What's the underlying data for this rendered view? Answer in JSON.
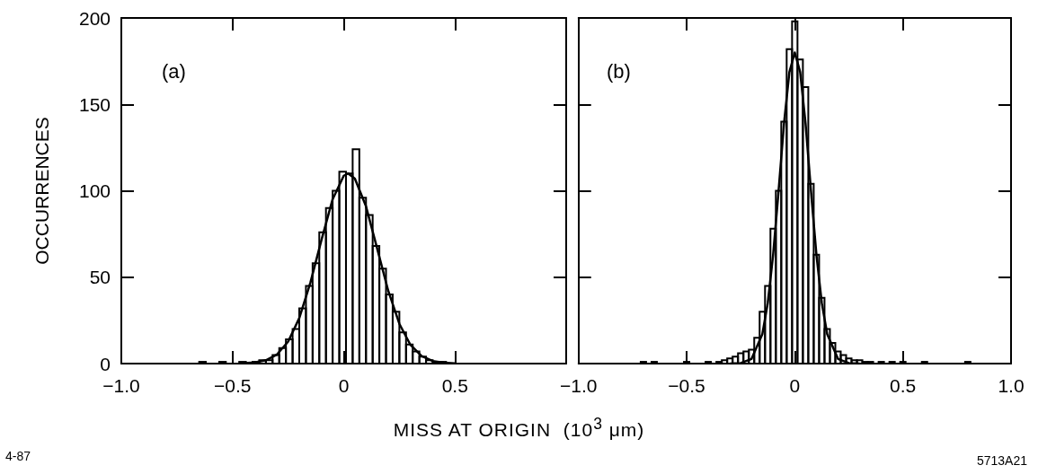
{
  "chart_data": [
    {
      "type": "histogram",
      "ylabel": "OCCURRENCES",
      "xlabel": "MISS AT ORIGIN  (10$^{3}$ μm)",
      "annotations": [
        "(a)",
        "4-87"
      ],
      "xlim": [
        -1,
        1
      ],
      "xticks": [
        {
          "value": -1,
          "label": "−1.0"
        },
        {
          "value": -0.5,
          "label": "−0.5"
        },
        0,
        {
          "value": 0.5,
          "label": "0.5"
        },
        {
          "value": 1,
          "label": null
        }
      ],
      "ylim": [
        0,
        200
      ],
      "yticks": [
        0,
        50,
        100,
        150,
        200
      ],
      "series": [
        {
          "color": "#000000",
          "bins": [
            -0.98,
            -0.95,
            -0.92,
            -0.89,
            -0.86,
            -0.83,
            -0.8,
            -0.77,
            -0.74,
            -0.71,
            -0.68,
            -0.65,
            -0.62,
            -0.59,
            -0.56,
            -0.53,
            -0.5,
            -0.47,
            -0.44,
            -0.41,
            -0.38,
            -0.35,
            -0.32,
            -0.29,
            -0.26,
            -0.23,
            -0.2,
            -0.17,
            -0.14,
            -0.11,
            -0.08,
            -0.05,
            -0.02,
            0.01,
            0.04,
            0.07,
            0.1,
            0.13,
            0.16,
            0.19,
            0.22,
            0.25,
            0.28,
            0.31,
            0.34,
            0.37,
            0.4,
            0.43,
            0.46,
            0.49,
            0.52,
            0.55,
            0.58,
            0.61,
            0.64,
            0.67,
            0.7,
            0.73,
            0.76,
            0.79,
            0.82,
            0.85,
            0.88,
            0.91,
            0.94,
            0.97,
            1.0
          ],
          "values": [
            0,
            0,
            0,
            0,
            0,
            0,
            0,
            0,
            0,
            0,
            0,
            1,
            0,
            0,
            1,
            0,
            0,
            1,
            0,
            1,
            2,
            2,
            5,
            9,
            14,
            20,
            32,
            45,
            58,
            76,
            90,
            100,
            111,
            110,
            124,
            96,
            86,
            68,
            55,
            40,
            30,
            18,
            11,
            7,
            4,
            2,
            1,
            1,
            0,
            0,
            0,
            0,
            0,
            0,
            0,
            0,
            0,
            0,
            0,
            0,
            0,
            0,
            0,
            0,
            0,
            0
          ]
        },
        {
          "type": "line",
          "color": "#000000",
          "x": [
            -0.45,
            -0.4,
            -0.35,
            -0.3,
            -0.25,
            -0.2,
            -0.15,
            -0.1,
            -0.05,
            0,
            0.02,
            0.05,
            0.1,
            0.15,
            0.2,
            0.25,
            0.3,
            0.35,
            0.4,
            0.45,
            0.5
          ],
          "values": [
            0.2,
            0.6,
            1.9,
            5.3,
            12.7,
            26.3,
            46.8,
            71.6,
            95.1,
            108.7,
            110,
            107,
            91,
            66.7,
            42.1,
            23,
            10.8,
            4.4,
            1.5,
            0.5,
            0.1
          ]
        }
      ]
    },
    {
      "type": "histogram",
      "annotations": [
        "(b)",
        "5713A21"
      ],
      "xlim": [
        -1,
        1
      ],
      "xticks": [
        {
          "value": -1,
          "label": "−1.0"
        },
        {
          "value": -0.5,
          "label": "−0.5"
        },
        0,
        {
          "value": 0.5,
          "label": "0.5"
        },
        {
          "value": 1,
          "label": "1.0"
        }
      ],
      "ylim": [
        0,
        200
      ],
      "yticks": [
        0,
        50,
        100,
        150,
        200
      ],
      "tick_labels": "x",
      "series": [
        {
          "color": "#000000",
          "bins": [
            -0.9875,
            -0.9625,
            -0.9375,
            -0.9125,
            -0.8875,
            -0.8625,
            -0.8375,
            -0.8125,
            -0.7875,
            -0.7625,
            -0.7375,
            -0.7125,
            -0.6875,
            -0.6625,
            -0.6375,
            -0.6125,
            -0.5875,
            -0.5625,
            -0.5375,
            -0.5125,
            -0.4875,
            -0.4625,
            -0.4375,
            -0.4125,
            -0.3875,
            -0.3625,
            -0.3375,
            -0.3125,
            -0.2875,
            -0.2625,
            -0.2375,
            -0.2125,
            -0.1875,
            -0.1625,
            -0.1375,
            -0.1125,
            -0.0875,
            -0.0625,
            -0.0375,
            -0.0125,
            0.0125,
            0.0375,
            0.0625,
            0.0875,
            0.1125,
            0.1375,
            0.1625,
            0.1875,
            0.2125,
            0.2375,
            0.2625,
            0.2875,
            0.3125,
            0.3375,
            0.3625,
            0.3875,
            0.4125,
            0.4375,
            0.4625,
            0.4875,
            0.5125,
            0.5375,
            0.5625,
            0.5875,
            0.6125,
            0.6375,
            0.6625,
            0.6875,
            0.7125,
            0.7375,
            0.7625,
            0.7875,
            0.8125,
            0.8375,
            0.8625,
            0.8875,
            0.9125,
            0.9375,
            0.9625,
            0.9875
          ],
          "values": [
            0,
            0,
            0,
            0,
            0,
            0,
            0,
            0,
            0,
            0,
            0,
            1,
            0,
            1,
            0,
            0,
            0,
            0,
            0,
            1,
            0,
            0,
            0,
            1,
            0,
            1,
            2,
            3,
            4,
            6,
            7,
            8,
            15,
            30,
            45,
            78,
            100,
            140,
            182,
            198,
            176,
            160,
            104,
            63,
            38,
            20,
            12,
            7,
            5,
            3,
            2,
            2,
            1,
            1,
            0,
            1,
            0,
            1,
            0,
            1,
            0,
            0,
            0,
            1,
            0,
            0,
            0,
            0,
            0,
            0,
            0,
            1,
            0,
            0,
            0,
            0,
            0,
            0,
            0
          ]
        },
        {
          "type": "line",
          "color": "#000000",
          "x": [
            -0.3,
            -0.25,
            -0.2,
            -0.15,
            -0.125,
            -0.1,
            -0.075,
            -0.05,
            -0.025,
            0,
            0.025,
            0.05,
            0.075,
            0.1,
            0.125,
            0.15,
            0.2,
            0.25,
            0.3
          ],
          "values": [
            0,
            0.3,
            2.7,
            17,
            35,
            63,
            99.8,
            138.6,
            168.6,
            180,
            168.6,
            138.6,
            99.8,
            63,
            35,
            17,
            2.7,
            0.3,
            0
          ]
        }
      ]
    }
  ]
}
